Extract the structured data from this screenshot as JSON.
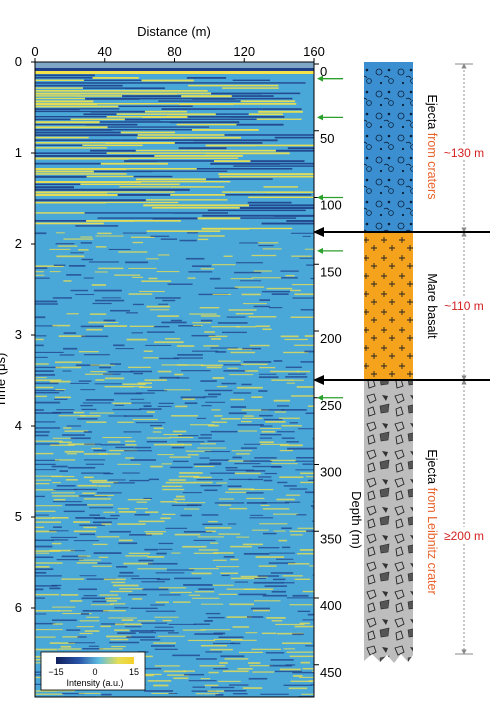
{
  "radargram": {
    "x_axis": {
      "label": "Distance (m)",
      "ticks": [
        0,
        40,
        80,
        120,
        160
      ],
      "range": [
        0,
        160
      ]
    },
    "time_axis": {
      "label": "Time (μs)",
      "ticks": [
        0,
        1,
        2,
        3,
        4,
        5,
        6
      ],
      "range": [
        0,
        6.9
      ]
    },
    "depth_axis": {
      "label": "Depth (m)",
      "ticks": [
        0,
        50,
        100,
        150,
        200,
        250,
        300,
        350,
        400,
        450
      ]
    },
    "colorbar": {
      "label": "Intensity (a.u.)",
      "ticks": [
        "−15",
        "0",
        "15"
      ]
    },
    "markers_depth_m": [
      5,
      40,
      100,
      140,
      250
    ],
    "reflector_depth_m": [
      125,
      237
    ]
  },
  "stratigraphy": [
    {
      "name_black": "Ejecta",
      "name_colored": "from craters",
      "thickness": "~130 m",
      "color": "#3b8fd0",
      "texture": "circles-dots"
    },
    {
      "name_black": "Mare basalt",
      "name_colored": "",
      "thickness": "~110 m",
      "color": "#f5a31d",
      "texture": "plus-signs"
    },
    {
      "name_black": "Ejecta",
      "name_colored": "from Leibnitz crater",
      "thickness": "≥200 m",
      "color": "#bdbdbd",
      "texture": "rock-fragments"
    }
  ],
  "colors": {
    "accent_text": "#e8632b",
    "thickness_text": "#d42020",
    "marker_arrow": "#2ca02c",
    "band_blue": "#1f3f8a",
    "band_yellow": "#f3e24a",
    "band_cyan": "#4aa8d8"
  }
}
